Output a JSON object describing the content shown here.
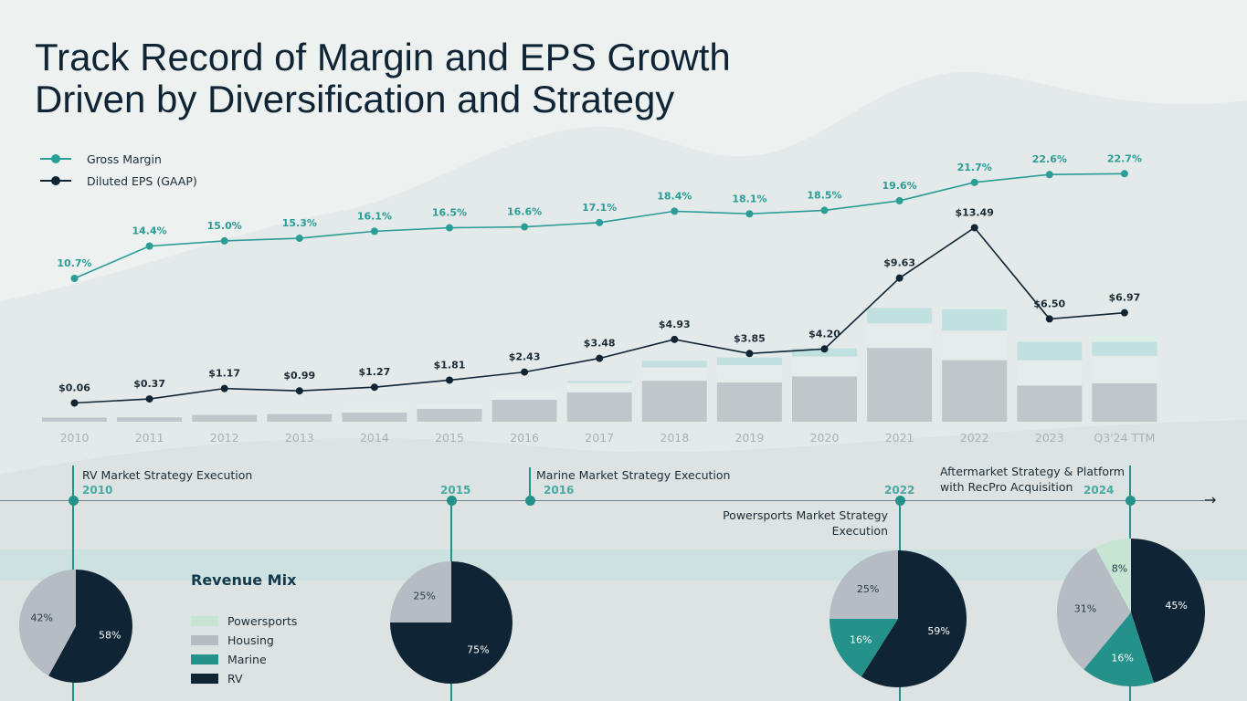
{
  "title_lines": [
    "Track Record of Margin and EPS Growth",
    "Driven by Diversification and Strategy"
  ],
  "colors": {
    "gross_margin": "#2a9d96",
    "eps": "#0f2535",
    "rv": "#0f2535",
    "marine": "#24918a",
    "housing": "#b5bcc3",
    "powersports": "#c6e6d3",
    "timeline": "#24918a"
  },
  "legend": [
    {
      "label": "Gross Margin",
      "key": "gross_margin"
    },
    {
      "label": "Diluted EPS (GAAP)",
      "key": "eps"
    }
  ],
  "chart_data": {
    "type": "line",
    "categories": [
      "2010",
      "2011",
      "2012",
      "2013",
      "2014",
      "2015",
      "2016",
      "2017",
      "2018",
      "2019",
      "2020",
      "2021",
      "2022",
      "2023",
      "Q3'24 TTM"
    ],
    "series": [
      {
        "name": "Gross Margin",
        "values": [
          10.7,
          14.4,
          15.0,
          15.3,
          16.1,
          16.5,
          16.6,
          17.1,
          18.4,
          18.1,
          18.5,
          19.6,
          21.7,
          22.6,
          22.7
        ],
        "labels": [
          "10.7%",
          "14.4%",
          "15.0%",
          "15.3%",
          "16.1%",
          "16.5%",
          "16.6%",
          "17.1%",
          "18.4%",
          "18.1%",
          "18.5%",
          "19.6%",
          "21.7%",
          "22.6%",
          "22.7%"
        ]
      },
      {
        "name": "Diluted EPS (GAAP)",
        "values": [
          0.06,
          0.37,
          1.17,
          0.99,
          1.27,
          1.81,
          2.43,
          3.48,
          4.93,
          3.85,
          4.2,
          9.63,
          13.49,
          6.5,
          6.97
        ],
        "labels": [
          "$0.06",
          "$0.37",
          "$1.17",
          "$0.99",
          "$1.27",
          "$1.81",
          "$2.43",
          "$3.48",
          "$4.93",
          "$3.85",
          "$4.20",
          "$9.63",
          "$13.49",
          "$6.50",
          "$6.97"
        ]
      }
    ],
    "background_bars": {
      "segments": [
        "RV",
        "Housing",
        "Marine",
        "Powersports"
      ],
      "values": [
        [
          0.28,
          0.07,
          0,
          0
        ],
        [
          0.3,
          0.08,
          0,
          0
        ],
        [
          0.46,
          0.14,
          0,
          0
        ],
        [
          0.52,
          0.22,
          0,
          0
        ],
        [
          0.62,
          0.28,
          0,
          0
        ],
        [
          0.87,
          0.33,
          0,
          0
        ],
        [
          1.48,
          0.48,
          0,
          0
        ],
        [
          1.98,
          0.63,
          0.15,
          0
        ],
        [
          2.77,
          0.9,
          0.45,
          0
        ],
        [
          2.65,
          1.17,
          0.52,
          0
        ],
        [
          3.06,
          1.35,
          0.55,
          0
        ],
        [
          4.99,
          1.65,
          1.05,
          0
        ],
        [
          4.16,
          2.0,
          1.45,
          0.15
        ],
        [
          2.45,
          1.7,
          1.25,
          0.15
        ],
        [
          2.6,
          1.85,
          0.95,
          0.45
        ]
      ]
    }
  },
  "timeline": {
    "events": [
      {
        "year": "2010",
        "label": [
          "RV Market Strategy Execution"
        ]
      },
      {
        "year": "2015",
        "label": []
      },
      {
        "year": "2016",
        "label": [
          "Marine Market Strategy Execution"
        ]
      },
      {
        "year": "2022",
        "label": [
          "Powersports Market Strategy",
          "Execution"
        ]
      },
      {
        "year": "2024",
        "label": [
          "Aftermarket Strategy & Platform",
          "with RecPro Acquisition"
        ]
      }
    ]
  },
  "revenue_mix": {
    "title": "Revenue Mix",
    "legend": [
      {
        "label": "Powersports",
        "key": "powersports"
      },
      {
        "label": "Housing",
        "key": "housing"
      },
      {
        "label": "Marine",
        "key": "marine"
      },
      {
        "label": "RV",
        "key": "rv"
      }
    ],
    "pies": [
      {
        "year": "2010",
        "slices": [
          {
            "segment": "RV",
            "value": 58,
            "label": "58%"
          },
          {
            "segment": "Housing",
            "value": 42,
            "label": "42%"
          }
        ]
      },
      {
        "year": "2015",
        "slices": [
          {
            "segment": "RV",
            "value": 75,
            "label": "75%"
          },
          {
            "segment": "Housing",
            "value": 25,
            "label": "25%"
          }
        ]
      },
      {
        "year": "2022",
        "slices": [
          {
            "segment": "RV",
            "value": 59,
            "label": "59%"
          },
          {
            "segment": "Marine",
            "value": 16,
            "label": "16%"
          },
          {
            "segment": "Housing",
            "value": 25,
            "label": "25%"
          }
        ]
      },
      {
        "year": "2024",
        "slices": [
          {
            "segment": "RV",
            "value": 45,
            "label": "45%"
          },
          {
            "segment": "Marine",
            "value": 16,
            "label": "16%"
          },
          {
            "segment": "Housing",
            "value": 31,
            "label": "31%"
          },
          {
            "segment": "Powersports",
            "value": 8,
            "label": "8%"
          }
        ]
      }
    ]
  }
}
